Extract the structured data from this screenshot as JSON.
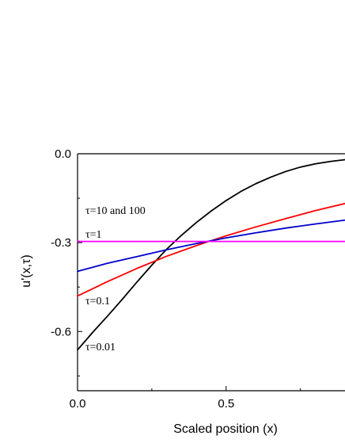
{
  "chart_data": {
    "type": "line",
    "xlabel": "Scaled position (x)",
    "ylabel": "u'(x,τ)",
    "xlim": [
      0,
      0.9
    ],
    "ylim": [
      -0.8,
      0.0
    ],
    "x_ticks": [
      0.0,
      0.5
    ],
    "x_tick_labels": [
      "0.0",
      "0.5"
    ],
    "y_ticks": [
      0.0,
      -0.3,
      -0.6
    ],
    "y_tick_labels": [
      "0.0",
      "-0.3",
      "-0.6"
    ],
    "series": [
      {
        "label": "τ=0.01",
        "color": "#000000",
        "x": [
          0.0,
          0.05,
          0.1,
          0.15,
          0.2,
          0.25,
          0.3,
          0.35,
          0.4,
          0.45,
          0.5,
          0.55,
          0.6,
          0.65,
          0.7,
          0.75,
          0.8,
          0.85,
          0.9
        ],
        "y": [
          -0.662,
          -0.604,
          -0.549,
          -0.492,
          -0.433,
          -0.376,
          -0.322,
          -0.275,
          -0.232,
          -0.193,
          -0.158,
          -0.127,
          -0.101,
          -0.079,
          -0.06,
          -0.045,
          -0.034,
          -0.026,
          -0.02
        ]
      },
      {
        "label": "τ=0.1",
        "color": "#ff0000",
        "x": [
          0.0,
          0.1,
          0.2,
          0.3,
          0.4,
          0.5,
          0.6,
          0.7,
          0.8,
          0.9
        ],
        "y": [
          -0.48,
          -0.432,
          -0.387,
          -0.346,
          -0.31,
          -0.277,
          -0.247,
          -0.219,
          -0.192,
          -0.168
        ]
      },
      {
        "label": "τ=1",
        "color": "#0000cc",
        "x": [
          0.0,
          0.1,
          0.2,
          0.3,
          0.4,
          0.5,
          0.6,
          0.7,
          0.8,
          0.9
        ],
        "y": [
          -0.397,
          -0.37,
          -0.347,
          -0.324,
          -0.303,
          -0.284,
          -0.267,
          -0.251,
          -0.237,
          -0.224
        ]
      },
      {
        "label": "τ=10 and 100",
        "color": "#ff00ff",
        "x": [
          0.0,
          0.9
        ],
        "y": [
          -0.296,
          -0.296
        ]
      }
    ]
  }
}
